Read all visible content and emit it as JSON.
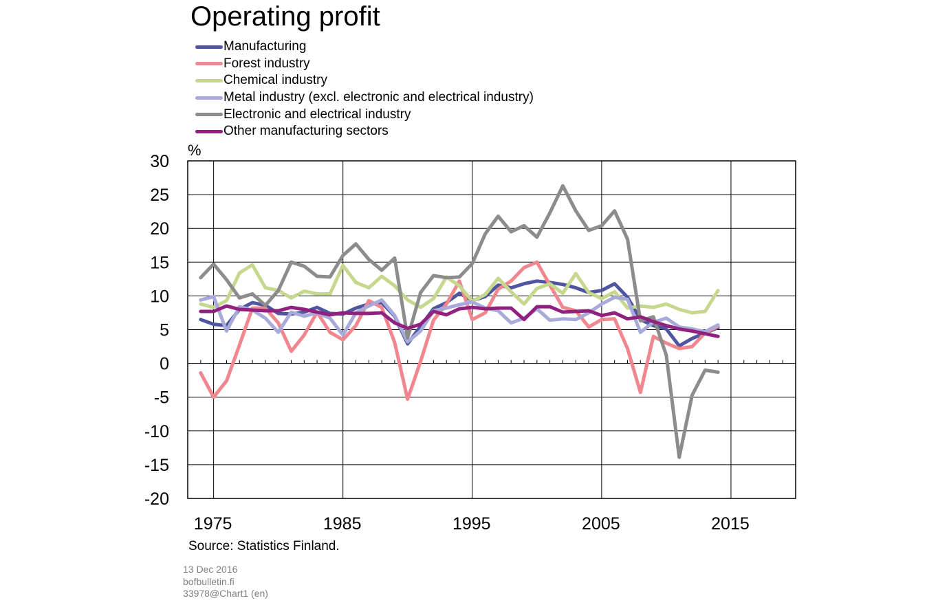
{
  "title": "Operating profit",
  "source": "Source: Statistics Finland.",
  "footer": {
    "date": "13 Dec 2016",
    "site": "bofbulletin.fi",
    "code": "33978@Chart1 (en)"
  },
  "chart_data": {
    "type": "line",
    "title": "Operating profit",
    "ylabel": "%",
    "xlabel": "",
    "xlim": [
      1973,
      2020
    ],
    "ylim": [
      -20,
      30
    ],
    "yticks": [
      30,
      25,
      20,
      15,
      10,
      5,
      0,
      -5,
      -10,
      -15,
      -20
    ],
    "xticks": [
      1975,
      1985,
      1995,
      2005,
      2015
    ],
    "grid": true,
    "legend_position": "top-left",
    "x": [
      1974,
      1975,
      1976,
      1977,
      1978,
      1979,
      1980,
      1981,
      1982,
      1983,
      1984,
      1985,
      1986,
      1987,
      1988,
      1989,
      1990,
      1991,
      1992,
      1993,
      1994,
      1995,
      1996,
      1997,
      1998,
      1999,
      2000,
      2001,
      2002,
      2003,
      2004,
      2005,
      2006,
      2007,
      2008,
      2009,
      2010,
      2011,
      2012,
      2013,
      2014
    ],
    "series": [
      {
        "name": "Manufacturing",
        "color": "#4f55a0",
        "width": 5,
        "values": [
          6.5,
          5.8,
          5.6,
          8.0,
          9.0,
          8.6,
          7.4,
          7.3,
          7.6,
          8.3,
          7.4,
          7.3,
          8.2,
          8.8,
          9.0,
          7.0,
          2.9,
          5.5,
          8.1,
          9.0,
          10.4,
          9.3,
          9.9,
          11.6,
          11.2,
          11.8,
          12.2,
          12.0,
          11.7,
          11.2,
          10.5,
          10.8,
          11.8,
          9.8,
          6.5,
          5.6,
          5.1,
          2.6,
          3.7,
          4.5,
          5.3
        ]
      },
      {
        "name": "Forest industry",
        "color": "#f0868e",
        "width": 5,
        "values": [
          -1.4,
          -5.0,
          -2.6,
          2.7,
          8.2,
          8.2,
          6.0,
          1.8,
          4.2,
          7.6,
          4.6,
          3.5,
          5.6,
          9.3,
          8.3,
          3.1,
          -5.3,
          0.3,
          6.4,
          8.8,
          12.2,
          6.5,
          7.5,
          11.0,
          12.2,
          14.2,
          15.0,
          11.6,
          8.3,
          7.8,
          5.4,
          6.5,
          6.6,
          2.2,
          -4.3,
          4.0,
          3.0,
          2.2,
          2.5,
          4.5,
          5.5
        ]
      },
      {
        "name": "Chemical industry",
        "color": "#c5d88e",
        "width": 5,
        "values": [
          8.8,
          8.3,
          9.3,
          13.4,
          14.6,
          11.2,
          10.8,
          9.7,
          10.7,
          10.3,
          10.3,
          14.5,
          12.0,
          11.2,
          12.9,
          11.5,
          9.4,
          8.3,
          9.6,
          12.8,
          11.5,
          9.2,
          10.2,
          12.6,
          10.6,
          8.8,
          11.1,
          11.8,
          10.4,
          13.3,
          10.5,
          9.6,
          10.6,
          8.2,
          8.5,
          8.3,
          8.8,
          8.0,
          7.5,
          7.7,
          10.8
        ]
      },
      {
        "name": "Metal industry (excl. electronic and electrical industry)",
        "color": "#a8abd9",
        "width": 5,
        "values": [
          9.4,
          9.9,
          4.8,
          8.4,
          7.9,
          6.7,
          4.6,
          7.6,
          7.0,
          7.5,
          6.7,
          4.2,
          7.5,
          8.5,
          9.4,
          7.1,
          3.2,
          4.8,
          7.8,
          8.2,
          8.7,
          9.1,
          8.2,
          7.8,
          6.0,
          6.7,
          8.1,
          6.4,
          6.6,
          6.5,
          7.5,
          8.8,
          9.8,
          9.5,
          4.6,
          6.1,
          6.7,
          5.4,
          5.1,
          4.7,
          5.7
        ]
      },
      {
        "name": "Electronic and electrical industry",
        "color": "#8c8c8c",
        "width": 5,
        "values": [
          12.7,
          14.7,
          12.4,
          9.7,
          10.3,
          8.6,
          10.8,
          15.0,
          14.4,
          12.9,
          12.8,
          16.0,
          17.7,
          15.4,
          13.8,
          15.6,
          3.8,
          10.5,
          13.0,
          12.7,
          12.8,
          14.8,
          19.2,
          21.8,
          19.5,
          20.4,
          18.7,
          22.3,
          26.3,
          22.6,
          19.7,
          20.4,
          22.6,
          18.4,
          6.3,
          6.9,
          1.2,
          -13.9,
          -4.7,
          -1.0,
          -1.3
        ]
      },
      {
        "name": "Other manufacturing sectors",
        "color": "#91217f",
        "width": 5,
        "values": [
          7.7,
          7.7,
          8.5,
          8.0,
          7.9,
          7.8,
          7.8,
          8.3,
          8.0,
          7.6,
          7.2,
          7.5,
          7.4,
          7.4,
          7.5,
          6.0,
          5.2,
          5.8,
          7.7,
          7.2,
          8.1,
          8.3,
          8.1,
          8.2,
          8.2,
          6.5,
          8.4,
          8.4,
          7.6,
          7.7,
          7.8,
          7.1,
          7.5,
          6.6,
          6.9,
          6.2,
          5.6,
          5.1,
          4.8,
          4.4,
          4.0
        ]
      }
    ]
  }
}
